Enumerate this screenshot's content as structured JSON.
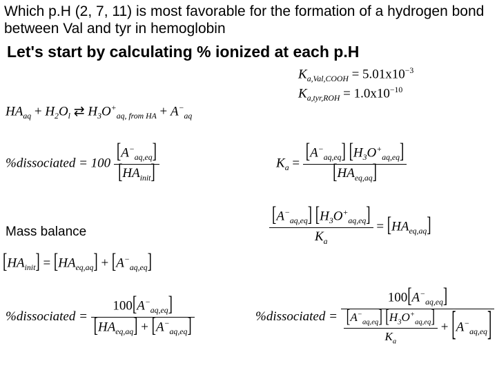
{
  "question": "Which p.H (2, 7, 11) is most favorable for the formation of a hydrogen bond between Val and tyr in hemoglobin",
  "subtitle": "Let's start by calculating % ionized at each p.H",
  "ka1": {
    "label": "K",
    "sub": "a,Val,COOH",
    "eq": "= 5.01x10",
    "exp": "−3"
  },
  "ka2": {
    "label": "K",
    "sub": "a,tyr,ROH",
    "eq": "= 1.0x10",
    "exp": "−10"
  },
  "rxn": {
    "lhs1": "HA",
    "lhs1sub": "aq",
    "plus1": " + ",
    "lhs2": "H",
    "lhs2sub": "2",
    "lhs2b": "O",
    "lhs2bsub": "l",
    "arrow": " ⇄ ",
    "rhs1": "H",
    "rhs1sub": "3",
    "rhs1b": "O",
    "rhs1sup": "+",
    "rhs1bsub": "aq, from HA",
    "plus2": " + ",
    "rhs2": "A",
    "rhs2sup": "−",
    "rhs2sub": "aq"
  },
  "pdiss1": {
    "lhs": "%dissociated = 100",
    "numL": "[",
    "numA": "A",
    "numSup": "−",
    "numSub": "aq,eq",
    "numR": "]",
    "denL": "[",
    "denA": "HA",
    "denSub": "init",
    "denR": "]"
  },
  "ka_def": {
    "lhs": "K",
    "lhsSub": "a",
    "eq": " = ",
    "n1L": "[",
    "n1": "A",
    "n1Sup": "−",
    "n1Sub": "aq,eq",
    "n1R": "]",
    "n2L": "[",
    "n2": "H",
    "n2Sub3": "3",
    "n2b": "O",
    "n2Sup": "+",
    "n2Sub": "aq,eq",
    "n2R": "]",
    "dL": "[",
    "d": "HA",
    "dSub": "eq,aq",
    "dR": "]"
  },
  "mass_label": "Mass balance",
  "ka_rearr": {
    "n1L": "[",
    "n1": "A",
    "n1Sup": "−",
    "n1Sub": "aq,eq",
    "n1R": "]",
    "n2L": "[",
    "n2": "H",
    "n2Sub3": "3",
    "n2b": "O",
    "n2Sup": "+",
    "n2Sub": "aq,eq",
    "n2R": "]",
    "dK": "K",
    "dKSub": "a",
    "eq": " = ",
    "rL": "[",
    "r": "HA",
    "rSub": "eq,aq",
    "rR": "]"
  },
  "mass": {
    "lL": "[",
    "l": "HA",
    "lSub": "init",
    "lR": "]",
    "eq": " = ",
    "r1L": "[",
    "r1": "HA",
    "r1Sub": "eq,aq",
    "r1R": "]",
    "plus": " + ",
    "r2L": "[",
    "r2": "A",
    "r2Sup": "−",
    "r2Sub": "aq,eq",
    "r2R": "]"
  },
  "pdiss2": {
    "lhs": "%dissociated = ",
    "numPre": "100",
    "nL": "[",
    "n": "A",
    "nSup": "−",
    "nSub": "aq,eq",
    "nR": "]",
    "d1L": "[",
    "d1": "HA",
    "d1Sub": "eq,aq",
    "d1R": "]",
    "plus": " + ",
    "d2L": "[",
    "d2": "A",
    "d2Sup": "−",
    "d2Sub": "aq,eq",
    "d2R": "]"
  },
  "pdiss3": {
    "lhs": "%dissociated = ",
    "numPre": "100",
    "nL": "[",
    "n": "A",
    "nSup": "−",
    "nSub": "aq,eq",
    "nR": "]",
    "d1nL": "[",
    "d1n1": "A",
    "d1n1Sup": "−",
    "d1n1Sub": "aq,eq",
    "d1nR": "]",
    "d1n2L": "[",
    "d1n2": "H",
    "d1n2Sub3": "3",
    "d1n2b": "O",
    "d1n2Sup": "+",
    "d1n2Sub": "aq,eq",
    "d1n2R": "]",
    "d1dK": "K",
    "d1dKSub": "a",
    "plus": " + ",
    "d2L": "[",
    "d2": "A",
    "d2Sup": "−",
    "d2Sub": "aq,eq",
    "d2R": "]"
  },
  "colors": {
    "text": "#000000",
    "bg": "#ffffff"
  }
}
